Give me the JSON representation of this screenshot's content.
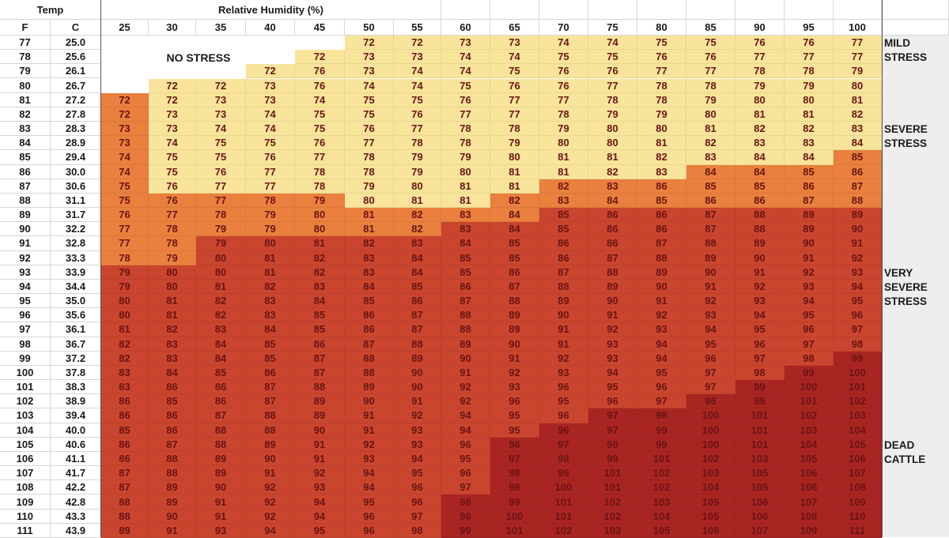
{
  "header": {
    "temp": "Temp",
    "rh": "Relative Humidity (%)",
    "f": "F",
    "c": "C"
  },
  "humidity": [
    "25",
    "30",
    "35",
    "40",
    "45",
    "50",
    "55",
    "60",
    "65",
    "70",
    "75",
    "80",
    "85",
    "90",
    "95",
    "100"
  ],
  "no_stress_label": "NO STRESS",
  "stress_labels": [
    {
      "key": "mild",
      "lines": [
        "MILD",
        "STRESS"
      ]
    },
    {
      "key": "severe",
      "lines": [
        "SEVERE",
        "STRESS"
      ]
    },
    {
      "key": "very-severe",
      "lines": [
        "VERY",
        "SEVERE",
        "STRESS"
      ]
    },
    {
      "key": "dead",
      "lines": [
        "DEAD",
        "CATTLE"
      ]
    }
  ],
  "zone_colors": {
    "none": "#ffffff",
    "mild": "#f8e49a",
    "severe": "#e9803e",
    "very_severe": "#c9452e",
    "dead": "#a92522"
  },
  "rows": [
    {
      "f": "77",
      "c": "25.0",
      "v": [
        null,
        null,
        null,
        null,
        null,
        72,
        72,
        73,
        73,
        74,
        74,
        75,
        75,
        76,
        76,
        77
      ]
    },
    {
      "f": "78",
      "c": "25.6",
      "v": [
        null,
        null,
        null,
        null,
        72,
        73,
        73,
        74,
        74,
        75,
        75,
        76,
        76,
        77,
        77,
        77
      ]
    },
    {
      "f": "79",
      "c": "26.1",
      "v": [
        null,
        null,
        null,
        72,
        76,
        73,
        74,
        74,
        75,
        76,
        76,
        77,
        77,
        78,
        78,
        79
      ]
    },
    {
      "f": "80",
      "c": "26.7",
      "v": [
        null,
        72,
        72,
        73,
        76,
        74,
        74,
        75,
        76,
        76,
        77,
        78,
        78,
        79,
        79,
        80
      ]
    },
    {
      "f": "81",
      "c": "27.2",
      "v": [
        72,
        72,
        73,
        73,
        74,
        75,
        75,
        76,
        77,
        77,
        78,
        78,
        79,
        80,
        80,
        81
      ]
    },
    {
      "f": "82",
      "c": "27.8",
      "v": [
        72,
        73,
        73,
        74,
        75,
        75,
        76,
        77,
        77,
        78,
        79,
        79,
        80,
        81,
        81,
        82
      ]
    },
    {
      "f": "83",
      "c": "28.3",
      "v": [
        73,
        73,
        74,
        74,
        75,
        76,
        77,
        78,
        78,
        79,
        80,
        80,
        81,
        82,
        82,
        83
      ]
    },
    {
      "f": "84",
      "c": "28.9",
      "v": [
        73,
        74,
        75,
        75,
        76,
        77,
        78,
        78,
        79,
        80,
        80,
        81,
        82,
        83,
        83,
        84
      ]
    },
    {
      "f": "85",
      "c": "29.4",
      "v": [
        74,
        75,
        75,
        76,
        77,
        78,
        79,
        79,
        80,
        81,
        81,
        82,
        83,
        84,
        84,
        85
      ]
    },
    {
      "f": "86",
      "c": "30.0",
      "v": [
        74,
        75,
        76,
        77,
        78,
        78,
        79,
        80,
        81,
        81,
        82,
        83,
        84,
        84,
        85,
        86
      ]
    },
    {
      "f": "87",
      "c": "30.6",
      "v": [
        75,
        76,
        77,
        77,
        78,
        79,
        80,
        81,
        81,
        82,
        83,
        86,
        85,
        85,
        86,
        87
      ]
    },
    {
      "f": "88",
      "c": "31.1",
      "v": [
        75,
        76,
        77,
        78,
        79,
        80,
        81,
        81,
        82,
        83,
        84,
        85,
        86,
        86,
        87,
        88
      ]
    },
    {
      "f": "89",
      "c": "31.7",
      "v": [
        76,
        77,
        78,
        79,
        80,
        81,
        82,
        83,
        84,
        85,
        86,
        86,
        87,
        88,
        89,
        89
      ]
    },
    {
      "f": "90",
      "c": "32.2",
      "v": [
        77,
        78,
        79,
        79,
        80,
        81,
        82,
        83,
        84,
        85,
        86,
        86,
        87,
        88,
        89,
        90
      ]
    },
    {
      "f": "91",
      "c": "32.8",
      "v": [
        77,
        78,
        79,
        80,
        81,
        82,
        83,
        84,
        85,
        86,
        86,
        87,
        88,
        89,
        90,
        91
      ]
    },
    {
      "f": "92",
      "c": "33.3",
      "v": [
        78,
        79,
        80,
        81,
        82,
        83,
        84,
        85,
        85,
        86,
        87,
        88,
        89,
        90,
        91,
        92
      ]
    },
    {
      "f": "93",
      "c": "33.9",
      "v": [
        79,
        80,
        80,
        81,
        82,
        83,
        84,
        85,
        86,
        87,
        88,
        89,
        90,
        91,
        92,
        93
      ]
    },
    {
      "f": "94",
      "c": "34.4",
      "v": [
        79,
        80,
        81,
        82,
        83,
        84,
        85,
        86,
        87,
        88,
        89,
        90,
        91,
        92,
        93,
        94
      ]
    },
    {
      "f": "95",
      "c": "35.0",
      "v": [
        80,
        81,
        82,
        83,
        84,
        85,
        86,
        87,
        88,
        89,
        90,
        91,
        92,
        93,
        94,
        95
      ]
    },
    {
      "f": "96",
      "c": "35.6",
      "v": [
        80,
        81,
        82,
        83,
        85,
        86,
        87,
        88,
        89,
        90,
        91,
        92,
        93,
        94,
        95,
        96
      ]
    },
    {
      "f": "97",
      "c": "36.1",
      "v": [
        81,
        82,
        83,
        84,
        85,
        86,
        87,
        88,
        89,
        91,
        92,
        93,
        94,
        95,
        96,
        97
      ]
    },
    {
      "f": "98",
      "c": "36.7",
      "v": [
        82,
        83,
        84,
        85,
        86,
        87,
        88,
        89,
        90,
        91,
        93,
        94,
        95,
        96,
        97,
        98
      ]
    },
    {
      "f": "99",
      "c": "37.2",
      "v": [
        82,
        83,
        84,
        85,
        87,
        88,
        89,
        90,
        91,
        92,
        93,
        94,
        96,
        97,
        98,
        99
      ]
    },
    {
      "f": "100",
      "c": "37.8",
      "v": [
        83,
        84,
        85,
        86,
        87,
        88,
        90,
        91,
        92,
        93,
        94,
        95,
        97,
        98,
        99,
        100
      ]
    },
    {
      "f": "101",
      "c": "38.3",
      "v": [
        83,
        86,
        86,
        87,
        88,
        89,
        90,
        92,
        93,
        96,
        95,
        96,
        97,
        99,
        100,
        101
      ]
    },
    {
      "f": "102",
      "c": "38.9",
      "v": [
        86,
        85,
        86,
        87,
        89,
        90,
        91,
        92,
        96,
        95,
        96,
        97,
        96,
        99,
        101,
        102
      ]
    },
    {
      "f": "103",
      "c": "39.4",
      "v": [
        86,
        86,
        87,
        88,
        89,
        91,
        92,
        94,
        95,
        96,
        97,
        98,
        100,
        101,
        102,
        103
      ]
    },
    {
      "f": "104",
      "c": "40.0",
      "v": [
        85,
        86,
        88,
        88,
        90,
        91,
        93,
        94,
        95,
        96,
        97,
        99,
        100,
        101,
        103,
        104
      ]
    },
    {
      "f": "105",
      "c": "40.6",
      "v": [
        86,
        87,
        88,
        89,
        91,
        92,
        93,
        96,
        96,
        97,
        98,
        99,
        100,
        101,
        104,
        105
      ]
    },
    {
      "f": "106",
      "c": "41.1",
      "v": [
        86,
        88,
        89,
        90,
        91,
        93,
        94,
        95,
        97,
        98,
        99,
        101,
        102,
        103,
        105,
        106
      ]
    },
    {
      "f": "107",
      "c": "41.7",
      "v": [
        87,
        88,
        89,
        91,
        92,
        94,
        95,
        96,
        98,
        99,
        101,
        102,
        103,
        105,
        106,
        107
      ]
    },
    {
      "f": "108",
      "c": "42.2",
      "v": [
        87,
        89,
        90,
        92,
        93,
        94,
        96,
        97,
        98,
        100,
        101,
        102,
        104,
        105,
        106,
        108
      ]
    },
    {
      "f": "109",
      "c": "42.8",
      "v": [
        88,
        89,
        91,
        92,
        94,
        95,
        96,
        98,
        99,
        101,
        102,
        103,
        105,
        106,
        107,
        109
      ]
    },
    {
      "f": "110",
      "c": "43.3",
      "v": [
        88,
        90,
        91,
        92,
        94,
        96,
        97,
        98,
        100,
        101,
        102,
        104,
        105,
        106,
        108,
        110
      ]
    },
    {
      "f": "111",
      "c": "43.9",
      "v": [
        89,
        91,
        93,
        94,
        95,
        96,
        98,
        99,
        101,
        102,
        103,
        105,
        106,
        107,
        109,
        111
      ]
    }
  ],
  "zone_boundaries": {
    "severe_start_row_by_col": [
      4,
      11,
      11,
      11,
      11,
      12,
      12,
      12,
      11,
      10,
      10,
      10,
      9,
      9,
      9,
      8
    ],
    "very_severe_start_row_by_col": [
      16,
      16,
      14,
      14,
      14,
      14,
      14,
      13,
      13,
      12,
      12,
      12,
      12,
      12,
      12,
      12
    ],
    "dead_start_row_by_col": [
      99,
      99,
      99,
      99,
      99,
      99,
      99,
      32,
      28,
      27,
      26,
      26,
      25,
      24,
      23,
      22
    ]
  }
}
